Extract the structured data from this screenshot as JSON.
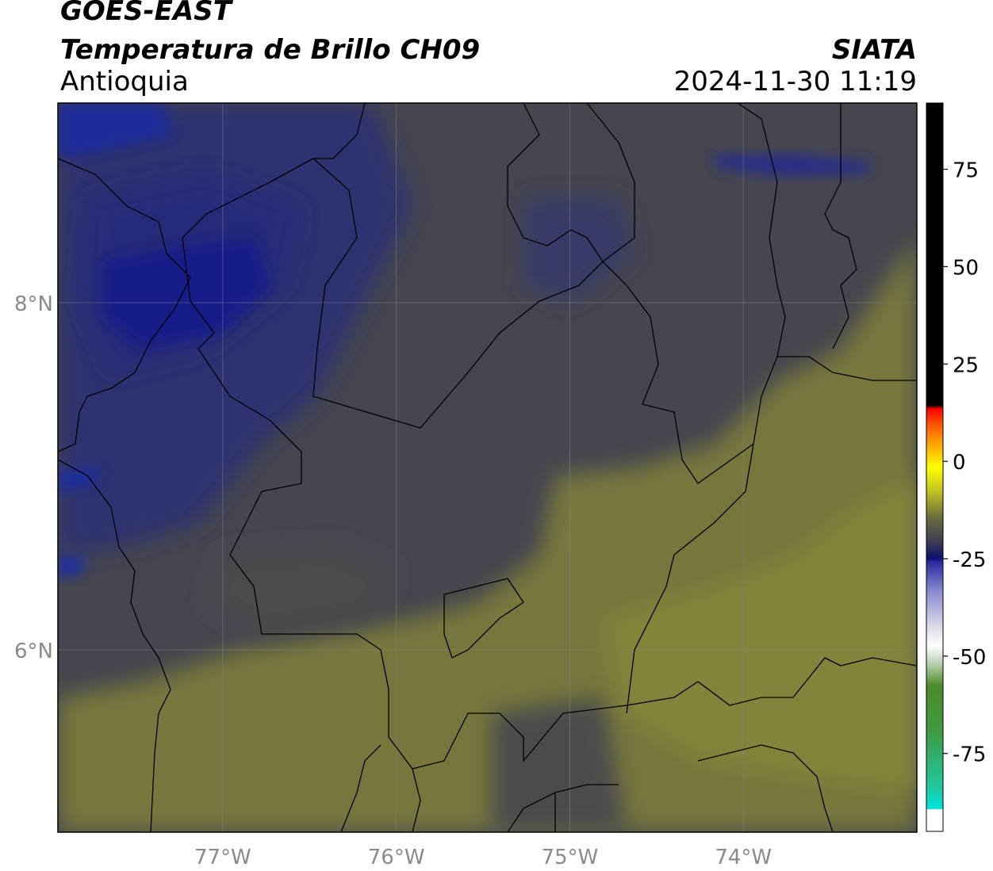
{
  "header": {
    "satellite": "GOES-EAST",
    "product": "Temperatura de Brillo CH09",
    "region": "Antioquia",
    "organization": "SIATA",
    "datetime": "2024-11-30 11:19"
  },
  "map": {
    "lon_range": [
      -77.95,
      -73.0
    ],
    "lat_range": [
      4.95,
      9.15
    ],
    "lon_ticks": [
      {
        "value": -77,
        "label": "77°W"
      },
      {
        "value": -76,
        "label": "76°W"
      },
      {
        "value": -75,
        "label": "75°W"
      },
      {
        "value": -74,
        "label": "74°W"
      }
    ],
    "lat_ticks": [
      {
        "value": 8,
        "label": "8°N"
      },
      {
        "value": 6,
        "label": "6°N"
      }
    ],
    "grid": true,
    "colors": {
      "cold_blue": "#1a2a8a",
      "mid_gray": "#45464f",
      "warm_olive": "#77773c"
    }
  },
  "colorbar": {
    "range": [
      -95,
      92
    ],
    "tick_values": [
      75,
      50,
      25,
      0,
      -25,
      -50,
      -75
    ],
    "tick_labels": [
      "75",
      "50",
      "25",
      "0",
      "-25",
      "-50",
      "-75"
    ]
  }
}
